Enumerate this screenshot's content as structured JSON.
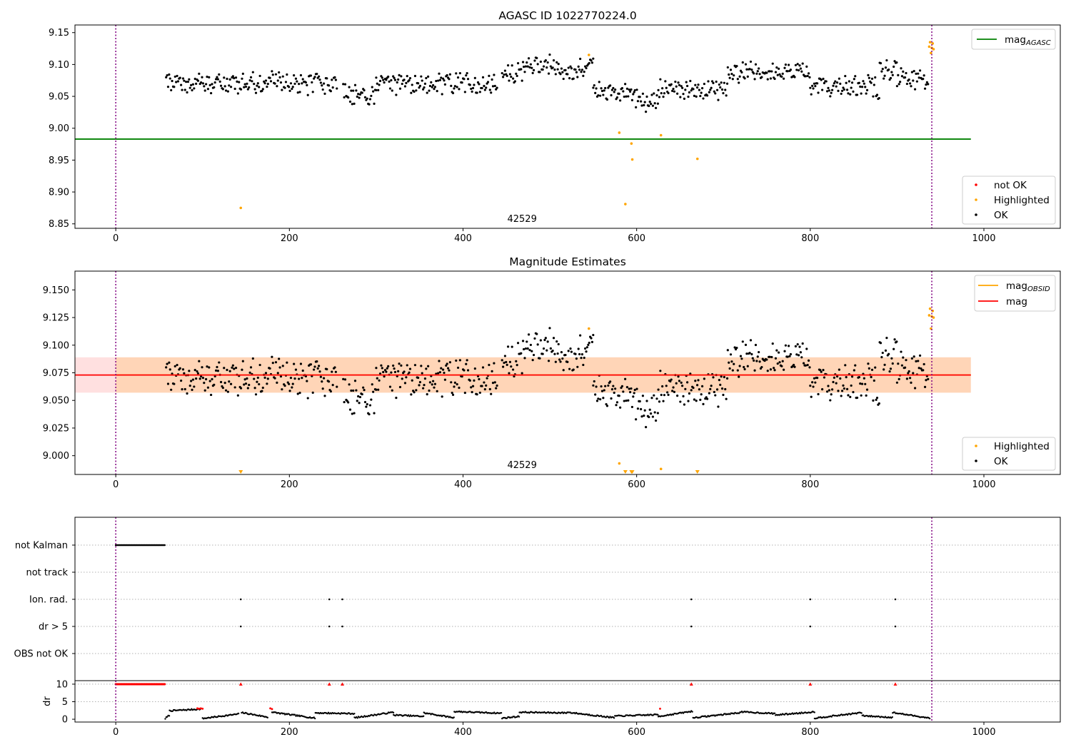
{
  "chart_data": [
    {
      "type": "scatter",
      "title": "AGASC ID 1022770224.0",
      "xlim": [
        -47,
        1088
      ],
      "ylim": [
        8.843,
        9.162
      ],
      "xticks": [
        0,
        200,
        400,
        600,
        800,
        1000
      ],
      "yticks": [
        8.85,
        8.9,
        8.95,
        9.0,
        9.05,
        9.1,
        9.15
      ],
      "ytick_labels": [
        "8.85",
        "8.90",
        "8.95",
        "9.00",
        "9.05",
        "9.10",
        "9.15"
      ],
      "obsid_label": "42529",
      "obsid_label_x": 468,
      "obs_bounds": [
        0,
        940
      ],
      "mag_agasc": 8.983,
      "mag_agasc_xrange": [
        -47,
        985
      ],
      "legend_top": [
        {
          "label": "mag",
          "sub": "AGASC",
          "color": "#008000"
        }
      ],
      "legend_bottom": [
        {
          "label": "not OK",
          "color": "#ff0000"
        },
        {
          "label": "Highlighted",
          "color": "#ffa500"
        },
        {
          "label": "OK",
          "color": "#000000"
        }
      ],
      "highlighted_points": [
        [
          144,
          8.875
        ],
        [
          545,
          9.115
        ],
        [
          580,
          8.993
        ],
        [
          587,
          8.881
        ],
        [
          594,
          8.976
        ],
        [
          595,
          8.951
        ],
        [
          628,
          8.989
        ],
        [
          670,
          8.952
        ],
        [
          937,
          9.128
        ],
        [
          938,
          9.135
        ],
        [
          939,
          9.118
        ],
        [
          940,
          9.126
        ],
        [
          941,
          9.133
        ],
        [
          942,
          9.124
        ]
      ],
      "ok_segments": [
        {
          "x0": 58,
          "x1": 255,
          "base": 9.07
        },
        {
          "x0": 262,
          "x1": 300,
          "base": 9.052
        },
        {
          "x0": 300,
          "x1": 440,
          "base": 9.07
        },
        {
          "x0": 445,
          "x1": 470,
          "base": 9.087
        },
        {
          "x0": 470,
          "x1": 510,
          "base": 9.098
        },
        {
          "x0": 510,
          "x1": 535,
          "base": 9.085
        },
        {
          "x0": 535,
          "x1": 550,
          "base": 9.097
        },
        {
          "x0": 550,
          "x1": 598,
          "base": 9.058
        },
        {
          "x0": 598,
          "x1": 625,
          "base": 9.044
        },
        {
          "x0": 625,
          "x1": 705,
          "base": 9.062
        },
        {
          "x0": 705,
          "x1": 800,
          "base": 9.087
        },
        {
          "x0": 800,
          "x1": 880,
          "base": 9.065
        },
        {
          "x0": 880,
          "x1": 900,
          "base": 9.09
        },
        {
          "x0": 900,
          "x1": 936,
          "base": 9.077
        }
      ]
    },
    {
      "type": "scatter",
      "title": "Magnitude Estimates",
      "xlim": [
        -47,
        1088
      ],
      "ylim": [
        8.983,
        9.167
      ],
      "xticks": [
        0,
        200,
        400,
        600,
        800,
        1000
      ],
      "yticks": [
        9.0,
        9.025,
        9.05,
        9.075,
        9.1,
        9.125,
        9.15
      ],
      "ytick_labels": [
        "9.000",
        "9.025",
        "9.050",
        "9.075",
        "9.100",
        "9.125",
        "9.150"
      ],
      "obsid_label": "42529",
      "obsid_label_x": 468,
      "obs_bounds": [
        0,
        940
      ],
      "mag": 9.073,
      "mag_band": [
        9.057,
        9.089
      ],
      "mag_xrange": [
        -47,
        985
      ],
      "mag_obsid": 9.073,
      "mag_obsid_band": [
        9.057,
        9.089
      ],
      "mag_obsid_xrange": [
        0,
        985
      ],
      "legend_top": [
        {
          "label": "mag",
          "sub": "OBSID",
          "color": "#ffa500"
        },
        {
          "label": "mag",
          "sub": "",
          "color": "#ff0000"
        }
      ],
      "legend_bottom": [
        {
          "label": "Highlighted",
          "color": "#ffa500"
        },
        {
          "label": "OK",
          "color": "#000000"
        }
      ],
      "highlighted_points": [
        [
          545,
          9.115
        ],
        [
          580,
          8.993
        ],
        [
          628,
          8.988
        ],
        [
          937,
          9.127
        ],
        [
          938,
          9.133
        ],
        [
          939,
          9.115
        ],
        [
          940,
          9.126
        ],
        [
          941,
          9.131
        ],
        [
          942,
          9.125
        ]
      ],
      "out_of_range_markers": [
        144,
        587,
        594,
        595,
        670
      ],
      "ok_segments": "same_as_first"
    },
    {
      "type": "scatter",
      "title": "",
      "xlim": [
        -47,
        1088
      ],
      "xticks": [
        0,
        200,
        400,
        600,
        800,
        1000
      ],
      "obs_bounds": [
        0,
        940
      ],
      "flag_rows": [
        "not Kalman",
        "not track",
        "Ion. rad.",
        "dr > 5",
        "OBS not OK"
      ],
      "flags": {
        "not Kalman": {
          "range": [
            0,
            57
          ]
        },
        "not track": {
          "points": []
        },
        "Ion. rad.": {
          "points": [
            144,
            246,
            261,
            663,
            800,
            898
          ]
        },
        "dr > 5": {
          "points": [
            144,
            246,
            261,
            663,
            800,
            898
          ]
        },
        "OBS not OK": {
          "points": []
        }
      },
      "ylabel": "dr",
      "dr_ylim": [
        -0.8,
        11.0
      ],
      "dr_yticks": [
        0,
        5,
        10
      ],
      "dr_high_points": [
        144,
        246,
        261,
        663,
        800,
        898
      ],
      "dr_high_range": [
        0,
        57
      ],
      "dr_value_high": 10,
      "dr_red_points": [
        [
          94,
          3.1
        ],
        [
          96,
          3.0
        ],
        [
          98,
          3.1
        ],
        [
          100,
          3.0
        ],
        [
          178,
          3.1
        ],
        [
          180,
          2.9
        ],
        [
          627,
          3.0
        ]
      ],
      "dr_segments": [
        {
          "x0": 57,
          "x1": 62,
          "y0": 0.2,
          "y1": 1.2
        },
        {
          "x0": 62,
          "x1": 98,
          "y0": 2.4,
          "y1": 2.9
        },
        {
          "x0": 100,
          "x1": 142,
          "y0": 0.2,
          "y1": 1.5
        },
        {
          "x0": 145,
          "x1": 175,
          "y0": 1.9,
          "y1": 0.6
        },
        {
          "x0": 180,
          "x1": 230,
          "y0": 2.0,
          "y1": 0.3
        },
        {
          "x0": 230,
          "x1": 275,
          "y0": 1.8,
          "y1": 1.6
        },
        {
          "x0": 275,
          "x1": 320,
          "y0": 0.4,
          "y1": 2.0
        },
        {
          "x0": 320,
          "x1": 355,
          "y0": 1.2,
          "y1": 0.8
        },
        {
          "x0": 355,
          "x1": 390,
          "y0": 1.8,
          "y1": 0.4
        },
        {
          "x0": 390,
          "x1": 445,
          "y0": 2.2,
          "y1": 1.7
        },
        {
          "x0": 445,
          "x1": 465,
          "y0": 0.3,
          "y1": 0.8
        },
        {
          "x0": 465,
          "x1": 520,
          "y0": 2.0,
          "y1": 1.8
        },
        {
          "x0": 520,
          "x1": 575,
          "y0": 2.0,
          "y1": 0.4
        },
        {
          "x0": 575,
          "x1": 625,
          "y0": 0.9,
          "y1": 1.3
        },
        {
          "x0": 625,
          "x1": 665,
          "y0": 0.8,
          "y1": 2.3
        },
        {
          "x0": 665,
          "x1": 720,
          "y0": 0.4,
          "y1": 1.9
        },
        {
          "x0": 720,
          "x1": 760,
          "y0": 2.1,
          "y1": 1.6
        },
        {
          "x0": 760,
          "x1": 805,
          "y0": 1.2,
          "y1": 2.1
        },
        {
          "x0": 805,
          "x1": 860,
          "y0": 0.3,
          "y1": 1.9
        },
        {
          "x0": 860,
          "x1": 895,
          "y0": 1.0,
          "y1": 0.5
        },
        {
          "x0": 895,
          "x1": 938,
          "y0": 1.9,
          "y1": 0.3
        }
      ]
    }
  ]
}
